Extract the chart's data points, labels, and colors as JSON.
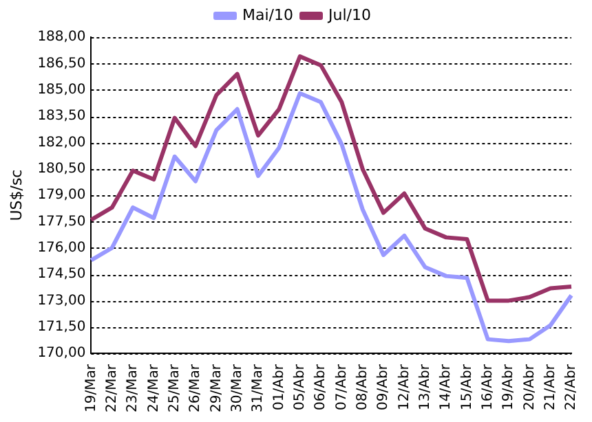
{
  "chart_data": {
    "type": "line",
    "ylabel": "US$/sc",
    "categories": [
      "19/Mar",
      "22/Mar",
      "23/Mar",
      "24/Mar",
      "25/Mar",
      "26/Mar",
      "29/Mar",
      "30/Mar",
      "31/Mar",
      "01/Abr",
      "05/Abr",
      "06/Abr",
      "07/Abr",
      "08/Abr",
      "09/Abr",
      "12/Abr",
      "13/Abr",
      "14/Abr",
      "15/Abr",
      "16/Abr",
      "19/Abr",
      "20/Abr",
      "21/Abr",
      "22/Abr"
    ],
    "series": [
      {
        "name": "Mai/10",
        "color": "#9999ff",
        "values": [
          175.3,
          176.0,
          178.3,
          177.7,
          181.2,
          179.8,
          182.7,
          183.9,
          180.1,
          181.7,
          184.8,
          184.3,
          181.9,
          178.2,
          175.6,
          176.7,
          174.9,
          174.4,
          174.3,
          170.8,
          170.7,
          170.8,
          171.6,
          173.3
        ]
      },
      {
        "name": "Jul/10",
        "color": "#993366",
        "values": [
          177.6,
          178.3,
          180.4,
          179.9,
          183.4,
          181.8,
          184.7,
          185.9,
          182.4,
          183.9,
          186.9,
          186.4,
          184.3,
          180.5,
          178.0,
          179.1,
          177.1,
          176.6,
          176.5,
          173.0,
          173.0,
          173.2,
          173.7,
          173.8
        ]
      }
    ],
    "ylim": [
      170,
      188
    ],
    "yticks": [
      {
        "value": 170,
        "label": "170,00"
      },
      {
        "value": 171.5,
        "label": "171,50"
      },
      {
        "value": 173,
        "label": "173,00"
      },
      {
        "value": 174.5,
        "label": "174,50"
      },
      {
        "value": 176,
        "label": "176,00"
      },
      {
        "value": 177.5,
        "label": "177,50"
      },
      {
        "value": 179,
        "label": "179,00"
      },
      {
        "value": 180.5,
        "label": "180,50"
      },
      {
        "value": 182,
        "label": "182,00"
      },
      {
        "value": 183.5,
        "label": "183,50"
      },
      {
        "value": 185,
        "label": "185,00"
      },
      {
        "value": 186.5,
        "label": "186,50"
      },
      {
        "value": 188,
        "label": "188,00"
      }
    ],
    "grid": "y",
    "legend": "top",
    "marker": "none",
    "line_style": "solid"
  }
}
